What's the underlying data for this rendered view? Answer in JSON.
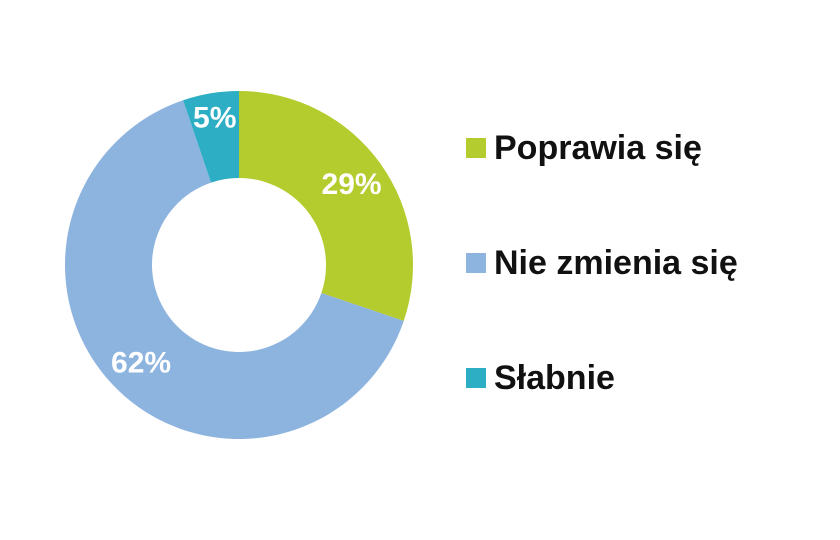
{
  "chart_data": {
    "type": "pie",
    "donut": true,
    "categories": [
      "Poprawia się",
      "Nie zmienia się",
      "Słabnie"
    ],
    "values": [
      29,
      62,
      5
    ],
    "data_labels": [
      "29%",
      "62%",
      "5%"
    ],
    "colors": [
      "#b5cc2e",
      "#8db4df",
      "#2eaec4"
    ],
    "legend_position": "right",
    "title": ""
  },
  "legend": {
    "items": [
      {
        "label": "Poprawia się",
        "color": "#b5cc2e"
      },
      {
        "label": "Nie zmienia się",
        "color": "#8db4df"
      },
      {
        "label": "Słabnie",
        "color": "#2eaec4"
      }
    ]
  }
}
